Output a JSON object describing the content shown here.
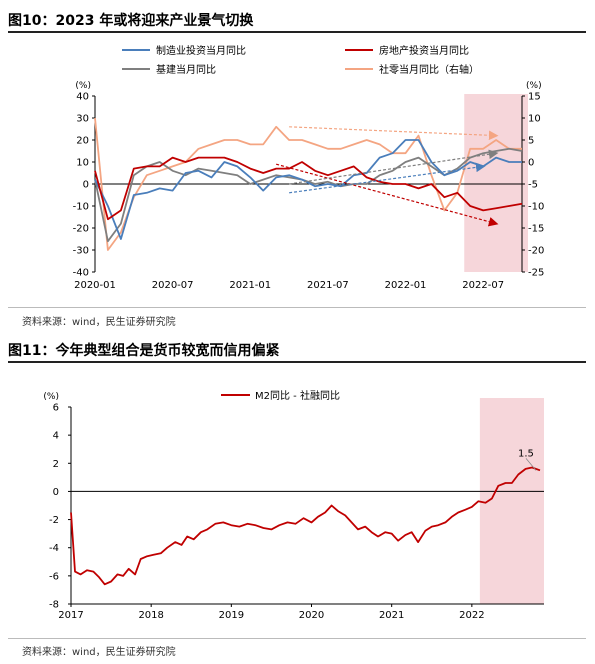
{
  "fig10": {
    "title": "图10：2023 年或将迎来产业景气切换",
    "source": "资料来源：wind，民生证券研究院",
    "colors": {
      "manufacturing": "#4A7EBB",
      "realestate": "#C00000",
      "infra": "#7F7F7F",
      "retail": "#F4A582",
      "shade": "#F6D6DA"
    }
  },
  "fig11": {
    "title": "图11：今年典型组合是货币较宽而信用偏紧",
    "source": "资料来源：wind，民生证券研究院",
    "colors": {
      "line": "#C00000",
      "shade": "#F6D6DA"
    }
  },
  "chart_data": [
    {
      "type": "line",
      "legend_position": "top",
      "left_axis_unit": "(%)",
      "right_axis_unit": "(%)",
      "ylim": [
        -40,
        40
      ],
      "y_ticks": [
        -40,
        -30,
        -20,
        -10,
        0,
        10,
        20,
        30,
        40
      ],
      "y2lim": [
        -25,
        15
      ],
      "y2_ticks": [
        -25,
        -20,
        -15,
        -10,
        -5,
        0,
        5,
        10,
        15
      ],
      "x_tick_labels": [
        "2020-01",
        "2020-07",
        "2021-01",
        "2021-07",
        "2022-01",
        "2022-07"
      ],
      "x": [
        "2020-01",
        "2020-02",
        "2020-03",
        "2020-04",
        "2020-05",
        "2020-06",
        "2020-07",
        "2020-08",
        "2020-09",
        "2020-10",
        "2020-11",
        "2020-12",
        "2021-01",
        "2021-02",
        "2021-03",
        "2021-04",
        "2021-05",
        "2021-06",
        "2021-07",
        "2021-08",
        "2021-09",
        "2021-10",
        "2021-11",
        "2021-12",
        "2022-01",
        "2022-02",
        "2022-03",
        "2022-04",
        "2022-05",
        "2022-06",
        "2022-07",
        "2022-08",
        "2022-09",
        "2022-10"
      ],
      "shaded_period": [
        "2022-06",
        "2022-10"
      ],
      "series": [
        {
          "name": "制造业投资当月同比",
          "axis": "left",
          "values": [
            2,
            -10,
            -25,
            -5,
            -4,
            -2,
            -3,
            5,
            6,
            3,
            10,
            8,
            3,
            -3,
            3,
            4,
            2,
            -1,
            0,
            -1,
            4,
            5,
            12,
            14,
            20,
            20,
            10,
            4,
            6,
            10,
            8,
            12,
            10,
            10
          ]
        },
        {
          "name": "房地产投资当月同比",
          "axis": "left",
          "values": [
            6,
            -16,
            -12,
            7,
            8,
            8,
            12,
            10,
            12,
            12,
            12,
            10,
            7,
            5,
            7,
            7,
            10,
            6,
            4,
            6,
            8,
            3,
            1,
            0,
            0,
            -2,
            0,
            -6,
            -4,
            -10,
            -12,
            -11,
            -10,
            -9
          ]
        },
        {
          "name": "基建当月同比",
          "axis": "left",
          "values": [
            2,
            -26,
            -18,
            4,
            8,
            10,
            6,
            4,
            7,
            6,
            5,
            4,
            0,
            2,
            4,
            3,
            2,
            0,
            1,
            -1,
            0,
            0,
            4,
            6,
            10,
            12,
            8,
            4,
            7,
            12,
            14,
            15,
            16,
            15
          ]
        },
        {
          "name": "社零当月同比（右轴）",
          "axis": "right",
          "values": [
            10,
            -20,
            -16,
            -8,
            -3,
            -2,
            -1,
            0,
            3,
            4,
            5,
            5,
            4,
            4,
            8,
            5,
            5,
            4,
            3,
            3,
            4,
            5,
            4,
            2,
            2,
            6,
            -3,
            -11,
            -7,
            3,
            3,
            5,
            3,
            3
          ]
        }
      ]
    },
    {
      "type": "line",
      "legend_position": "top",
      "y_unit": "(%)",
      "ylim": [
        -8,
        6
      ],
      "y_ticks": [
        -8,
        -6,
        -4,
        -2,
        0,
        2,
        4,
        6
      ],
      "x_tick_labels": [
        "2017",
        "2018",
        "2019",
        "2020",
        "2021",
        "2022"
      ],
      "xlim": [
        2017.0,
        2022.9
      ],
      "shaded_period": [
        2022.1,
        2022.9
      ],
      "annotation": {
        "x": 2022.8,
        "y": 1.5,
        "text": "1.5"
      },
      "series": [
        {
          "name": "M2同比 - 社融同比",
          "x": [
            2017.0,
            2017.05,
            2017.12,
            2017.2,
            2017.28,
            2017.35,
            2017.42,
            2017.5,
            2017.58,
            2017.65,
            2017.72,
            2017.8,
            2017.87,
            2017.95,
            2018.03,
            2018.12,
            2018.2,
            2018.3,
            2018.38,
            2018.45,
            2018.53,
            2018.62,
            2018.7,
            2018.8,
            2018.9,
            2019.0,
            2019.1,
            2019.2,
            2019.3,
            2019.4,
            2019.5,
            2019.6,
            2019.7,
            2019.8,
            2019.9,
            2020.0,
            2020.08,
            2020.17,
            2020.25,
            2020.33,
            2020.42,
            2020.5,
            2020.58,
            2020.67,
            2020.75,
            2020.83,
            2020.92,
            2021.0,
            2021.08,
            2021.17,
            2021.25,
            2021.33,
            2021.42,
            2021.5,
            2021.58,
            2021.67,
            2021.75,
            2021.83,
            2021.92,
            2022.0,
            2022.08,
            2022.17,
            2022.25,
            2022.33,
            2022.42,
            2022.5,
            2022.58,
            2022.67,
            2022.75,
            2022.85
          ],
          "values": [
            -1.5,
            -5.7,
            -5.9,
            -5.6,
            -5.7,
            -6.1,
            -6.6,
            -6.4,
            -5.9,
            -6.0,
            -5.5,
            -5.9,
            -4.8,
            -4.6,
            -4.5,
            -4.4,
            -4.0,
            -3.6,
            -3.8,
            -3.2,
            -3.4,
            -2.9,
            -2.7,
            -2.3,
            -2.2,
            -2.4,
            -2.5,
            -2.3,
            -2.4,
            -2.6,
            -2.7,
            -2.4,
            -2.2,
            -2.3,
            -1.9,
            -2.2,
            -1.8,
            -1.5,
            -1.0,
            -1.4,
            -1.7,
            -2.2,
            -2.7,
            -2.5,
            -2.9,
            -3.2,
            -2.9,
            -3.0,
            -3.5,
            -3.1,
            -2.9,
            -3.6,
            -2.8,
            -2.5,
            -2.4,
            -2.2,
            -1.8,
            -1.5,
            -1.3,
            -1.1,
            -0.7,
            -0.8,
            -0.5,
            0.4,
            0.6,
            0.6,
            1.2,
            1.6,
            1.7,
            1.5
          ]
        }
      ]
    }
  ]
}
